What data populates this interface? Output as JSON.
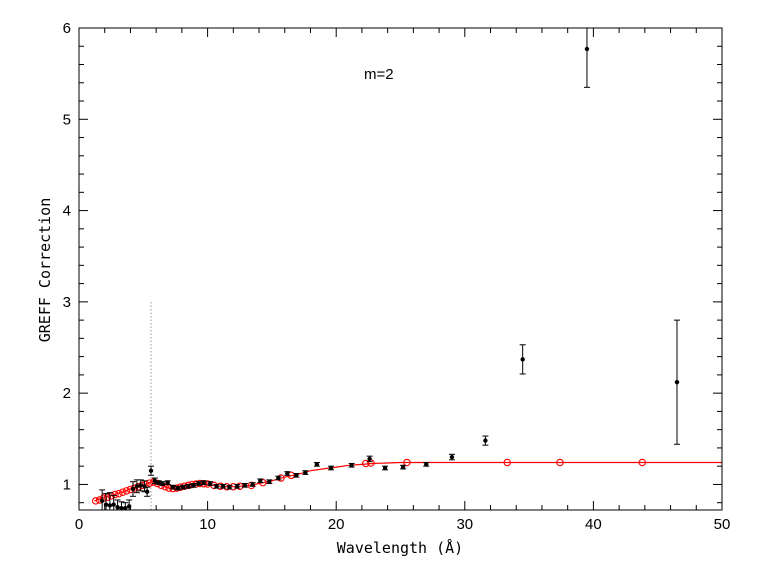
{
  "chart_data": {
    "type": "scatter",
    "title": "",
    "xlabel": "Wavelength (Å)",
    "ylabel": "GREFF Correction",
    "xlim": [
      0,
      50
    ],
    "ylim": [
      0.72,
      6.0
    ],
    "xticks": [
      0,
      10,
      20,
      30,
      40,
      50
    ],
    "yticks": [
      1,
      2,
      3,
      4,
      5,
      6
    ],
    "annotation": "m=2",
    "grid": false,
    "legend": "none",
    "colors": {
      "data": "#000000",
      "model": "#ff0000",
      "reference_line": "#999999"
    },
    "reference_line": {
      "x": 5.6,
      "y_from": 0.72,
      "y_to": 3.0
    },
    "model_curve": {
      "x": [
        1.2,
        1.6,
        2.0,
        2.5,
        3.0,
        3.5,
        4.0,
        4.5,
        5.0,
        5.5,
        5.8,
        6.2,
        6.6,
        7.0,
        7.4,
        7.8,
        8.2,
        8.6,
        9.0,
        9.5,
        10.0,
        10.5,
        11.0,
        11.5,
        12.0,
        12.5,
        13.0,
        13.5,
        14.0,
        15.0,
        16.0,
        17.0,
        18.0,
        19.0,
        20.0,
        21.0,
        22.0,
        23.0,
        24.0,
        25.0,
        26.0,
        28.0,
        30.0,
        35.0,
        40.0,
        45.0,
        50.0
      ],
      "y": [
        0.82,
        0.84,
        0.86,
        0.88,
        0.9,
        0.92,
        0.95,
        0.97,
        0.99,
        1.02,
        1.03,
        1.01,
        0.98,
        0.96,
        0.955,
        0.965,
        0.98,
        0.995,
        1.005,
        1.01,
        1.005,
        0.99,
        0.98,
        0.975,
        0.975,
        0.98,
        0.985,
        0.995,
        1.01,
        1.04,
        1.08,
        1.11,
        1.15,
        1.17,
        1.19,
        1.21,
        1.22,
        1.23,
        1.235,
        1.24,
        1.24,
        1.24,
        1.24,
        1.24,
        1.24,
        1.24,
        1.24
      ]
    },
    "model_markers": [
      {
        "x": 1.3,
        "y": 0.82
      },
      {
        "x": 1.6,
        "y": 0.83
      },
      {
        "x": 1.9,
        "y": 0.85
      },
      {
        "x": 2.2,
        "y": 0.86
      },
      {
        "x": 2.5,
        "y": 0.875
      },
      {
        "x": 2.8,
        "y": 0.89
      },
      {
        "x": 3.1,
        "y": 0.9
      },
      {
        "x": 3.4,
        "y": 0.915
      },
      {
        "x": 3.7,
        "y": 0.93
      },
      {
        "x": 4.0,
        "y": 0.945
      },
      {
        "x": 4.3,
        "y": 0.96
      },
      {
        "x": 4.6,
        "y": 0.975
      },
      {
        "x": 4.9,
        "y": 0.99
      },
      {
        "x": 5.2,
        "y": 1.0
      },
      {
        "x": 5.5,
        "y": 1.015
      },
      {
        "x": 5.8,
        "y": 1.025
      },
      {
        "x": 6.1,
        "y": 1.01
      },
      {
        "x": 6.4,
        "y": 0.99
      },
      {
        "x": 6.7,
        "y": 0.975
      },
      {
        "x": 7.0,
        "y": 0.96
      },
      {
        "x": 7.3,
        "y": 0.955
      },
      {
        "x": 7.6,
        "y": 0.96
      },
      {
        "x": 7.9,
        "y": 0.97
      },
      {
        "x": 8.2,
        "y": 0.98
      },
      {
        "x": 8.5,
        "y": 0.99
      },
      {
        "x": 8.8,
        "y": 1.0
      },
      {
        "x": 9.1,
        "y": 1.005
      },
      {
        "x": 9.4,
        "y": 1.01
      },
      {
        "x": 9.7,
        "y": 1.008
      },
      {
        "x": 10.0,
        "y": 1.005
      },
      {
        "x": 10.5,
        "y": 0.99
      },
      {
        "x": 11.0,
        "y": 0.98
      },
      {
        "x": 11.5,
        "y": 0.975
      },
      {
        "x": 12.0,
        "y": 0.975
      },
      {
        "x": 12.5,
        "y": 0.98
      },
      {
        "x": 13.4,
        "y": 0.99
      },
      {
        "x": 14.3,
        "y": 1.02
      },
      {
        "x": 15.7,
        "y": 1.07
      },
      {
        "x": 16.5,
        "y": 1.1
      },
      {
        "x": 22.3,
        "y": 1.23
      },
      {
        "x": 22.7,
        "y": 1.235
      },
      {
        "x": 25.5,
        "y": 1.24
      },
      {
        "x": 33.3,
        "y": 1.24
      },
      {
        "x": 37.4,
        "y": 1.24
      },
      {
        "x": 43.8,
        "y": 1.24
      }
    ],
    "data_points": [
      {
        "x": 1.8,
        "y": 0.82,
        "err": 0.12
      },
      {
        "x": 2.1,
        "y": 0.78,
        "err": 0.12
      },
      {
        "x": 2.4,
        "y": 0.77,
        "err": 0.14
      },
      {
        "x": 2.7,
        "y": 0.78,
        "err": 0.1
      },
      {
        "x": 3.0,
        "y": 0.75,
        "err": 0.08
      },
      {
        "x": 3.3,
        "y": 0.74,
        "err": 0.07
      },
      {
        "x": 3.6,
        "y": 0.74,
        "err": 0.06
      },
      {
        "x": 3.9,
        "y": 0.76,
        "err": 0.07
      },
      {
        "x": 4.2,
        "y": 0.95,
        "err": 0.08
      },
      {
        "x": 4.5,
        "y": 0.98,
        "err": 0.07
      },
      {
        "x": 4.8,
        "y": 0.99,
        "err": 0.06
      },
      {
        "x": 5.1,
        "y": 0.98,
        "err": 0.06
      },
      {
        "x": 5.3,
        "y": 0.92,
        "err": 0.05
      },
      {
        "x": 5.6,
        "y": 1.15,
        "err": 0.05
      },
      {
        "x": 5.9,
        "y": 1.04,
        "err": 0.03
      },
      {
        "x": 6.2,
        "y": 1.02,
        "err": 0.02
      },
      {
        "x": 6.5,
        "y": 1.01,
        "err": 0.02
      },
      {
        "x": 6.9,
        "y": 1.02,
        "err": 0.02
      },
      {
        "x": 7.3,
        "y": 0.97,
        "err": 0.02
      },
      {
        "x": 7.7,
        "y": 0.96,
        "err": 0.02
      },
      {
        "x": 8.1,
        "y": 0.97,
        "err": 0.02
      },
      {
        "x": 8.5,
        "y": 0.98,
        "err": 0.02
      },
      {
        "x": 8.9,
        "y": 0.99,
        "err": 0.02
      },
      {
        "x": 9.3,
        "y": 1.01,
        "err": 0.02
      },
      {
        "x": 9.7,
        "y": 1.02,
        "err": 0.02
      },
      {
        "x": 10.2,
        "y": 1.01,
        "err": 0.02
      },
      {
        "x": 10.7,
        "y": 0.98,
        "err": 0.02
      },
      {
        "x": 11.2,
        "y": 0.98,
        "err": 0.02
      },
      {
        "x": 11.7,
        "y": 0.97,
        "err": 0.02
      },
      {
        "x": 12.3,
        "y": 0.98,
        "err": 0.02
      },
      {
        "x": 12.9,
        "y": 0.99,
        "err": 0.02
      },
      {
        "x": 13.5,
        "y": 1.0,
        "err": 0.02
      },
      {
        "x": 14.1,
        "y": 1.04,
        "err": 0.02
      },
      {
        "x": 14.8,
        "y": 1.03,
        "err": 0.02
      },
      {
        "x": 15.5,
        "y": 1.07,
        "err": 0.02
      },
      {
        "x": 16.2,
        "y": 1.12,
        "err": 0.02
      },
      {
        "x": 16.9,
        "y": 1.1,
        "err": 0.02
      },
      {
        "x": 17.6,
        "y": 1.13,
        "err": 0.02
      },
      {
        "x": 18.5,
        "y": 1.22,
        "err": 0.02
      },
      {
        "x": 19.6,
        "y": 1.18,
        "err": 0.02
      },
      {
        "x": 21.2,
        "y": 1.21,
        "err": 0.02
      },
      {
        "x": 22.6,
        "y": 1.28,
        "err": 0.03
      },
      {
        "x": 23.8,
        "y": 1.18,
        "err": 0.02
      },
      {
        "x": 25.2,
        "y": 1.19,
        "err": 0.02
      },
      {
        "x": 27.0,
        "y": 1.22,
        "err": 0.02
      },
      {
        "x": 29.0,
        "y": 1.3,
        "err": 0.03
      },
      {
        "x": 31.6,
        "y": 1.48,
        "err": 0.05
      },
      {
        "x": 34.5,
        "y": 2.37,
        "err": 0.16
      },
      {
        "x": 39.5,
        "y": 5.77,
        "err": 0.42
      },
      {
        "x": 46.5,
        "y": 2.12,
        "err": 0.68
      }
    ]
  }
}
